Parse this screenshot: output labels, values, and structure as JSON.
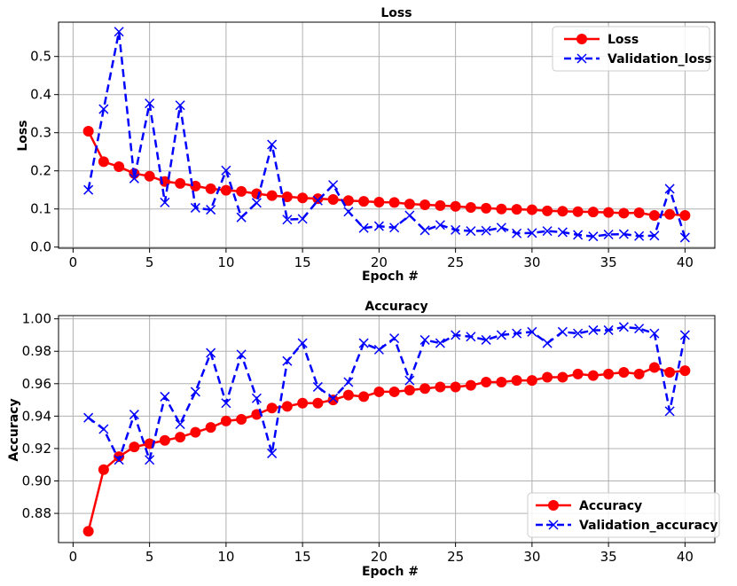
{
  "chart_data": [
    {
      "type": "line",
      "title": "Loss",
      "xlabel": "Epoch #",
      "ylabel": "Loss",
      "xlim": [
        -0.95,
        41.95
      ],
      "ylim": [
        -0.003,
        0.59
      ],
      "xticks": [
        0,
        5,
        10,
        15,
        20,
        25,
        30,
        35,
        40
      ],
      "yticks": [
        0.0,
        0.1,
        0.2,
        0.3,
        0.4,
        0.5
      ],
      "ytick_labels": [
        "0.0",
        "0.1",
        "0.2",
        "0.3",
        "0.4",
        "0.5"
      ],
      "grid": true,
      "legend_position": "top-right",
      "x": [
        1,
        2,
        3,
        4,
        5,
        6,
        7,
        8,
        9,
        10,
        11,
        12,
        13,
        14,
        15,
        16,
        17,
        18,
        19,
        20,
        21,
        22,
        23,
        24,
        25,
        26,
        27,
        28,
        29,
        30,
        31,
        32,
        33,
        34,
        35,
        36,
        37,
        38,
        39,
        40
      ],
      "series": [
        {
          "name": "Loss",
          "color": "#ff0000",
          "style": "solid",
          "marker": "circle",
          "values": [
            0.304,
            0.224,
            0.211,
            0.193,
            0.186,
            0.172,
            0.167,
            0.16,
            0.153,
            0.149,
            0.146,
            0.14,
            0.135,
            0.132,
            0.129,
            0.127,
            0.125,
            0.122,
            0.12,
            0.118,
            0.117,
            0.113,
            0.111,
            0.109,
            0.107,
            0.104,
            0.102,
            0.1,
            0.099,
            0.098,
            0.095,
            0.094,
            0.093,
            0.092,
            0.091,
            0.089,
            0.09,
            0.083,
            0.086,
            0.083
          ]
        },
        {
          "name": "Validation_loss",
          "color": "#0000ff",
          "style": "dashed",
          "marker": "x",
          "values": [
            0.15,
            0.362,
            0.565,
            0.18,
            0.377,
            0.117,
            0.372,
            0.103,
            0.098,
            0.201,
            0.078,
            0.116,
            0.269,
            0.072,
            0.074,
            0.122,
            0.163,
            0.093,
            0.05,
            0.055,
            0.051,
            0.083,
            0.044,
            0.058,
            0.045,
            0.042,
            0.043,
            0.051,
            0.036,
            0.037,
            0.042,
            0.039,
            0.032,
            0.028,
            0.033,
            0.034,
            0.029,
            0.03,
            0.153,
            0.025
          ]
        }
      ]
    },
    {
      "type": "line",
      "title": "Accuracy",
      "xlabel": "Epoch #",
      "ylabel": "Accuracy",
      "xlim": [
        -0.95,
        41.95
      ],
      "ylim": [
        0.862,
        1.002
      ],
      "xticks": [
        0,
        5,
        10,
        15,
        20,
        25,
        30,
        35,
        40
      ],
      "yticks": [
        0.88,
        0.9,
        0.92,
        0.94,
        0.96,
        0.98,
        1.0
      ],
      "ytick_labels": [
        "0.88",
        "0.90",
        "0.92",
        "0.94",
        "0.96",
        "0.98",
        "1.00"
      ],
      "grid": true,
      "legend_position": "bottom-right",
      "x": [
        1,
        2,
        3,
        4,
        5,
        6,
        7,
        8,
        9,
        10,
        11,
        12,
        13,
        14,
        15,
        16,
        17,
        18,
        19,
        20,
        21,
        22,
        23,
        24,
        25,
        26,
        27,
        28,
        29,
        30,
        31,
        32,
        33,
        34,
        35,
        36,
        37,
        38,
        39,
        40
      ],
      "series": [
        {
          "name": "Accuracy",
          "color": "#ff0000",
          "style": "solid",
          "marker": "circle",
          "values": [
            0.869,
            0.907,
            0.915,
            0.921,
            0.923,
            0.925,
            0.927,
            0.93,
            0.933,
            0.937,
            0.938,
            0.941,
            0.945,
            0.946,
            0.948,
            0.948,
            0.95,
            0.953,
            0.952,
            0.955,
            0.955,
            0.956,
            0.957,
            0.958,
            0.958,
            0.959,
            0.961,
            0.961,
            0.962,
            0.962,
            0.964,
            0.964,
            0.966,
            0.965,
            0.966,
            0.967,
            0.966,
            0.97,
            0.967,
            0.968
          ]
        },
        {
          "name": "Validation_accuracy",
          "color": "#0000ff",
          "style": "dashed",
          "marker": "x",
          "values": [
            0.939,
            0.932,
            0.913,
            0.941,
            0.913,
            0.952,
            0.935,
            0.955,
            0.979,
            0.948,
            0.978,
            0.951,
            0.917,
            0.974,
            0.985,
            0.958,
            0.951,
            0.961,
            0.985,
            0.981,
            0.988,
            0.962,
            0.987,
            0.985,
            0.99,
            0.989,
            0.987,
            0.99,
            0.991,
            0.992,
            0.985,
            0.992,
            0.991,
            0.993,
            0.993,
            0.995,
            0.994,
            0.991,
            0.943,
            0.99
          ]
        }
      ]
    }
  ]
}
